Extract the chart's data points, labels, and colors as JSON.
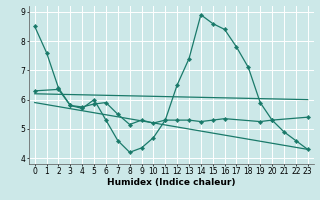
{
  "xlabel": "Humidex (Indice chaleur)",
  "bg_color": "#cce8e8",
  "line_color": "#1a7a6a",
  "grid_color": "#ffffff",
  "xlim": [
    -0.5,
    23.5
  ],
  "ylim": [
    3.8,
    9.2
  ],
  "yticks": [
    4,
    5,
    6,
    7,
    8,
    9
  ],
  "xticks": [
    0,
    1,
    2,
    3,
    4,
    5,
    6,
    7,
    8,
    9,
    10,
    11,
    12,
    13,
    14,
    15,
    16,
    17,
    18,
    19,
    20,
    21,
    22,
    23
  ],
  "lines": [
    {
      "x": [
        0,
        1,
        2,
        3,
        4,
        5,
        6,
        7,
        8,
        9,
        10,
        11,
        12,
        13,
        14,
        15,
        16,
        17,
        18,
        19,
        20,
        21,
        22,
        23
      ],
      "y": [
        8.5,
        7.6,
        6.4,
        5.8,
        5.7,
        6.0,
        5.3,
        4.6,
        4.2,
        4.35,
        4.7,
        5.3,
        6.5,
        7.4,
        8.9,
        8.6,
        8.4,
        7.8,
        7.1,
        5.9,
        5.3,
        4.9,
        4.6,
        4.3
      ],
      "markers": true
    },
    {
      "x": [
        0,
        2,
        3,
        4,
        5,
        6,
        7,
        8,
        9,
        10,
        11,
        12,
        13,
        14,
        15,
        16,
        19,
        20,
        23
      ],
      "y": [
        6.3,
        6.35,
        5.8,
        5.75,
        5.85,
        5.9,
        5.5,
        5.15,
        5.3,
        5.2,
        5.3,
        5.3,
        5.3,
        5.25,
        5.3,
        5.35,
        5.25,
        5.3,
        5.4
      ],
      "markers": true
    },
    {
      "x": [
        0,
        23
      ],
      "y": [
        6.2,
        6.0
      ],
      "markers": false
    },
    {
      "x": [
        0,
        23
      ],
      "y": [
        5.9,
        4.3
      ],
      "markers": false
    }
  ],
  "tick_fontsize": 5.5,
  "xlabel_fontsize": 6.5
}
